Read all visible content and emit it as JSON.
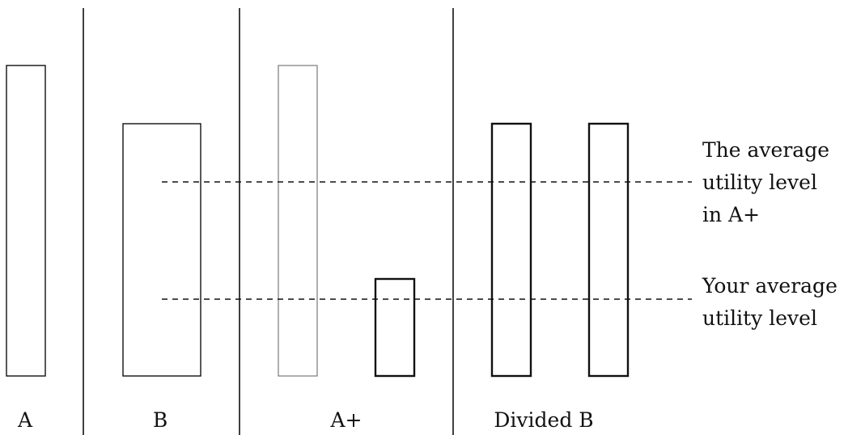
{
  "sections": {
    "a": "A",
    "b": "B",
    "a_plus": "A+",
    "divided_b": "Divided B"
  },
  "annotations": {
    "a_plus_average": [
      "The average",
      "utility level",
      "in A+"
    ],
    "your_average": [
      "Your average",
      "utility level"
    ]
  }
}
